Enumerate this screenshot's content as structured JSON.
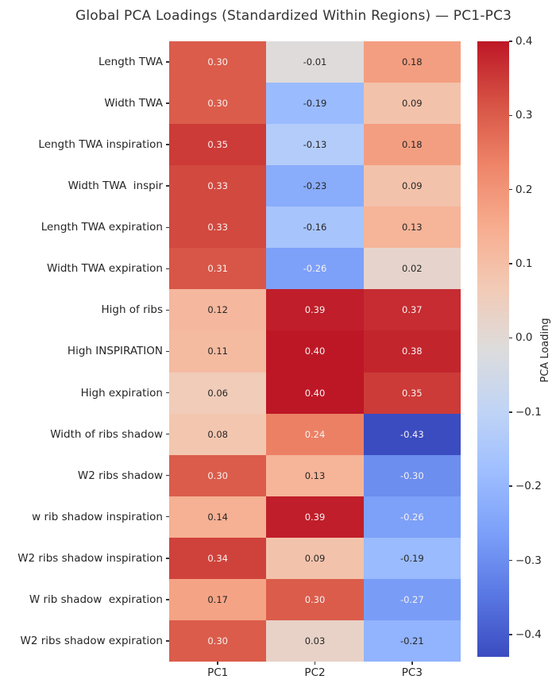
{
  "title": "Global PCA Loadings (Standardized Within Regions) — PC1-PC3",
  "chart_data": {
    "type": "heatmap",
    "title": "Global PCA Loadings (Standardized Within Regions) — PC1-PC3",
    "rows": [
      "Length TWA",
      "Width TWA",
      "Length TWA inspiration",
      "Width TWA  inspir",
      "Length TWA expiration",
      "Width TWA expiration",
      "High of ribs",
      "High INSPIRATION",
      "High expiration",
      "Width of ribs shadow",
      "W2 ribs shadow",
      "w rib shadow inspiration",
      "W2 ribs shadow inspiration",
      "W rib shadow  expiration",
      "W2 ribs shadow expiration"
    ],
    "columns": [
      "PC1",
      "PC2",
      "PC3"
    ],
    "values": [
      [
        0.3,
        -0.01,
        0.18
      ],
      [
        0.3,
        -0.19,
        0.09
      ],
      [
        0.35,
        -0.13,
        0.18
      ],
      [
        0.33,
        -0.23,
        0.09
      ],
      [
        0.33,
        -0.16,
        0.13
      ],
      [
        0.31,
        -0.26,
        0.02
      ],
      [
        0.12,
        0.39,
        0.37
      ],
      [
        0.11,
        0.4,
        0.38
      ],
      [
        0.06,
        0.4,
        0.35
      ],
      [
        0.08,
        0.24,
        -0.43
      ],
      [
        0.3,
        0.13,
        -0.3
      ],
      [
        0.14,
        0.39,
        -0.26
      ],
      [
        0.34,
        0.09,
        -0.19
      ],
      [
        0.17,
        0.3,
        -0.27
      ],
      [
        0.3,
        0.03,
        -0.21
      ]
    ],
    "annot_decimals": 2,
    "colorbar": {
      "label": "PCA Loading",
      "ticks": [
        0.4,
        0.3,
        0.2,
        0.1,
        0.0,
        -0.1,
        -0.2,
        -0.3,
        -0.4
      ],
      "vmin": -0.43,
      "vmax": 0.4,
      "colormap": "coolwarm",
      "stops": [
        "#3b4cc0",
        "#5977e3",
        "#7b9ff9",
        "#9ebeff",
        "#c0d4f5",
        "#dddcdc",
        "#f2cab5",
        "#f7ac8e",
        "#ee8468",
        "#d65244",
        "#bd1726"
      ]
    },
    "text_colors": {
      "light": "#f7f2f0",
      "dark": "#262626",
      "luminance_threshold": 0.653
    }
  }
}
